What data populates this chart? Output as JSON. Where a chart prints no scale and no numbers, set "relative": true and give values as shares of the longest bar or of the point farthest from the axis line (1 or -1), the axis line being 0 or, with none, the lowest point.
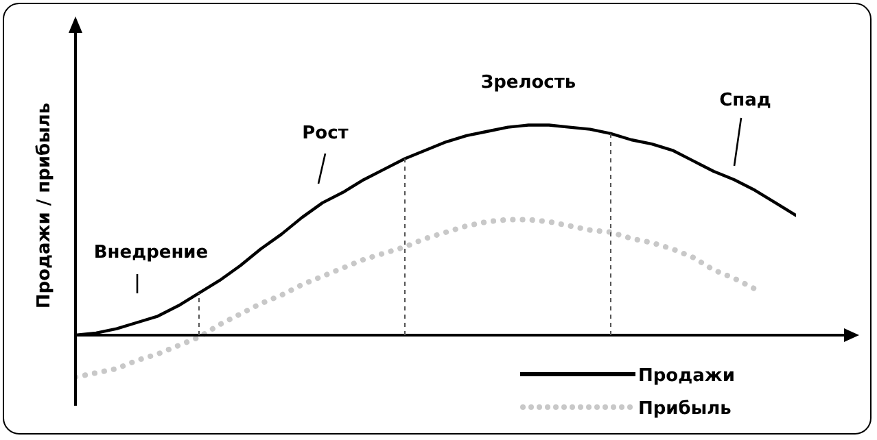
{
  "chart_data": {
    "type": "line",
    "relative": true,
    "ylabel": "Продажи / прибыль",
    "tick_labels": false,
    "legend": "bottom right",
    "marker": "none",
    "categories": [
      null,
      null,
      null,
      null,
      null,
      null,
      null,
      null,
      null,
      null,
      null,
      null,
      null,
      null,
      null,
      null,
      null,
      null,
      null,
      null,
      null,
      null,
      null,
      null,
      null,
      null,
      null,
      null,
      null,
      null,
      null,
      null,
      null,
      null,
      null,
      null
    ],
    "series": [
      {
        "name": "Продажи",
        "color": "#000000",
        "line_style": "solid",
        "values": [
          0,
          0.01,
          0.03,
          0.06,
          0.09,
          0.14,
          0.2,
          0.26,
          0.33,
          0.41,
          0.48,
          0.56,
          0.63,
          0.68,
          0.74,
          0.79,
          0.84,
          0.88,
          0.92,
          0.95,
          0.97,
          0.99,
          1,
          1,
          0.99,
          0.98,
          0.96,
          0.93,
          0.91,
          0.88,
          0.83,
          0.78,
          0.74,
          0.69,
          0.63,
          0.57
        ]
      },
      {
        "name": "Прибыль",
        "color": "#c8c8c8",
        "line_style": "dotted",
        "values": [
          -0.2,
          -0.18,
          -0.16,
          -0.12,
          -0.09,
          -0.05,
          -0.01,
          0.05,
          0.1,
          0.15,
          0.19,
          0.24,
          0.28,
          0.32,
          0.36,
          0.39,
          0.42,
          0.46,
          0.49,
          0.52,
          0.54,
          0.55,
          0.55,
          0.54,
          0.52,
          0.5,
          0.49,
          0.46,
          0.44,
          0.41,
          0.37,
          0.31,
          0.27,
          0.22,
          null,
          null
        ]
      }
    ],
    "annotations": [
      "Внедрение",
      "Рост",
      "Зрелость",
      "Спад"
    ]
  }
}
